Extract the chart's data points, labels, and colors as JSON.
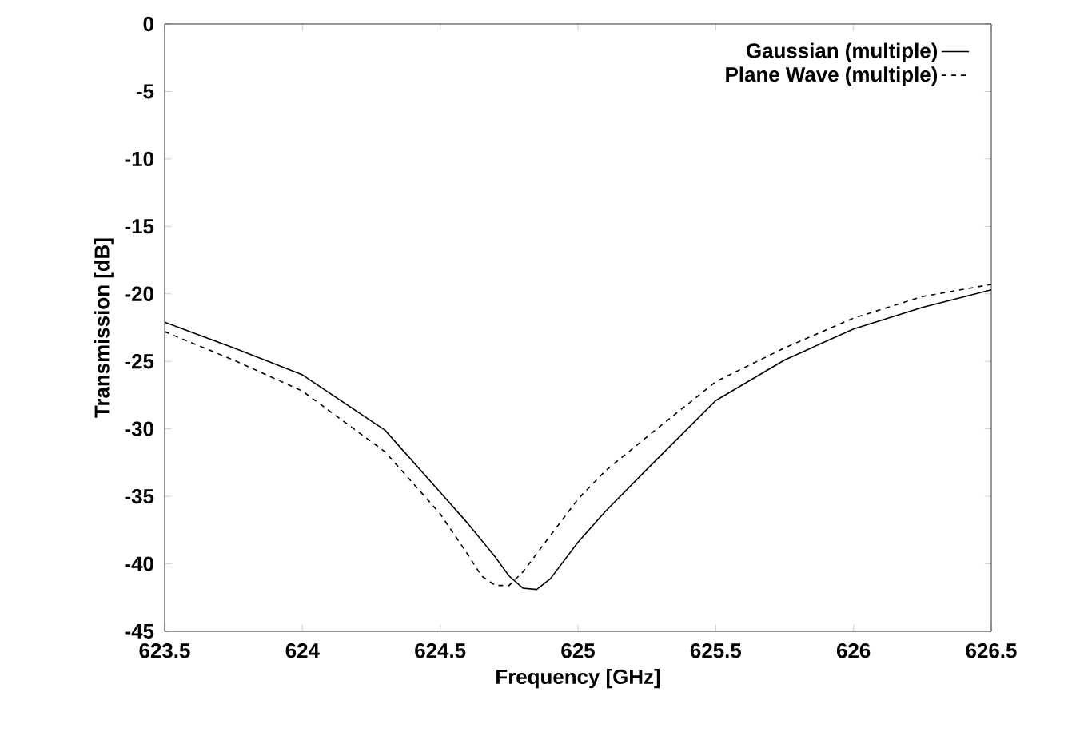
{
  "chart_data": {
    "type": "line",
    "xlabel": "Frequency [GHz]",
    "ylabel": "Transmission [dB]",
    "xlim": [
      623.5,
      626.5
    ],
    "ylim": [
      -45,
      0
    ],
    "xticks": [
      623.5,
      624,
      624.5,
      625,
      625.5,
      626,
      626.5
    ],
    "yticks": [
      0,
      -5,
      -10,
      -15,
      -20,
      -25,
      -30,
      -35,
      -40,
      -45
    ],
    "legend": "top right",
    "series": [
      {
        "name": "Gaussian (multiple)",
        "color": "#000000",
        "line_style": "solid",
        "x": [
          623.5,
          623.75,
          624,
          624.3,
          624.5,
          624.6,
          624.7,
          624.75,
          624.8,
          624.85,
          624.9,
          625,
          625.1,
          625.25,
          625.5,
          625.75,
          626,
          626.25,
          626.5
        ],
        "values": [
          -22.1,
          -24.0,
          -26.0,
          -30.1,
          -34.7,
          -37.0,
          -39.5,
          -40.9,
          -41.8,
          -41.9,
          -41.1,
          -38.4,
          -36.1,
          -33.0,
          -27.9,
          -24.9,
          -22.6,
          -21.0,
          -19.7
        ]
      },
      {
        "name": "Plane Wave (multiple)",
        "color": "#000000",
        "line_style": "dashed",
        "x": [
          623.5,
          623.75,
          624,
          624.3,
          624.5,
          624.6,
          624.65,
          624.7,
          624.75,
          624.8,
          624.9,
          625,
          625.1,
          625.25,
          625.5,
          625.75,
          626,
          626.25,
          626.5
        ],
        "values": [
          -22.8,
          -24.9,
          -27.2,
          -31.7,
          -36.3,
          -39.3,
          -40.9,
          -41.6,
          -41.6,
          -40.6,
          -37.9,
          -35.2,
          -33.1,
          -30.6,
          -26.5,
          -24.0,
          -21.8,
          -20.2,
          -19.3
        ]
      }
    ]
  }
}
